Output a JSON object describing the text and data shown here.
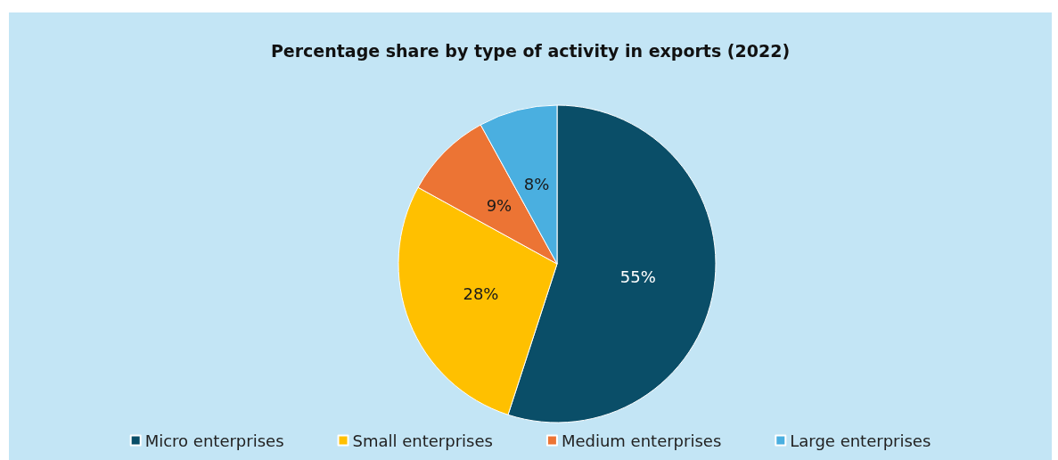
{
  "chart_data": {
    "type": "pie",
    "title": "Percentage share by type of activity in exports (2022)",
    "categories": [
      "Micro enterprises",
      "Small enterprises",
      "Medium enterprises",
      "Large enterprises"
    ],
    "values": [
      55,
      28,
      9,
      8
    ],
    "colors": [
      "#0a4e68",
      "#ffc000",
      "#ec7434",
      "#4aafe0"
    ],
    "value_labels": [
      "55%",
      "28%",
      "9%",
      "8%"
    ],
    "legend": "bottom"
  }
}
